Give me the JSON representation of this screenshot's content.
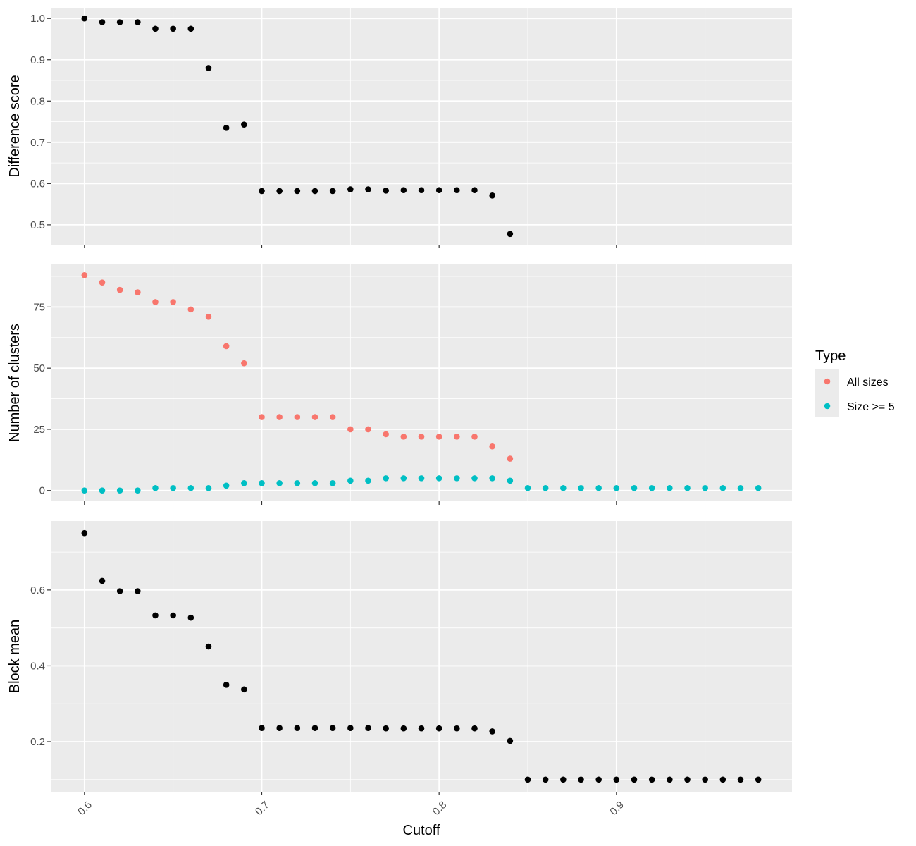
{
  "chart_data": {
    "type": "scatter",
    "xlabel": "Cutoff",
    "x_ticks": [
      0.6,
      0.7,
      0.8,
      0.9
    ],
    "x_tick_labels": [
      "0.6",
      "0.7",
      "0.8",
      "0.9"
    ],
    "xlim": [
      0.581,
      0.999
    ],
    "grid": true,
    "legend": {
      "title": "Type",
      "placement": "right",
      "entries": [
        {
          "label": "All sizes",
          "color": "#F8766D"
        },
        {
          "label": "Size >= 5",
          "color": "#00BFC4"
        }
      ]
    },
    "panels": [
      {
        "ylabel": "Difference score",
        "ylim": [
          0.452,
          1.026
        ],
        "y_ticks": [
          0.5,
          0.6,
          0.7,
          0.8,
          0.9,
          1.0
        ],
        "y_tick_labels": [
          "0.5",
          "0.6",
          "0.7",
          "0.8",
          "0.9",
          "1.0"
        ],
        "series": [
          {
            "color": "#000000",
            "x": [
              0.6,
              0.61,
              0.62,
              0.63,
              0.64,
              0.65,
              0.66,
              0.67,
              0.68,
              0.69,
              0.7,
              0.71,
              0.72,
              0.73,
              0.74,
              0.75,
              0.76,
              0.77,
              0.78,
              0.79,
              0.8,
              0.81,
              0.82,
              0.83,
              0.84
            ],
            "y": [
              1.0,
              0.991,
              0.991,
              0.991,
              0.975,
              0.975,
              0.975,
              0.88,
              0.735,
              0.743,
              0.582,
              0.582,
              0.582,
              0.582,
              0.582,
              0.586,
              0.586,
              0.583,
              0.584,
              0.584,
              0.584,
              0.584,
              0.584,
              0.571,
              0.478
            ]
          }
        ]
      },
      {
        "ylabel": "Number of clusters",
        "ylim": [
          -4.4,
          92.4
        ],
        "y_ticks": [
          0,
          25,
          50,
          75
        ],
        "y_tick_labels": [
          "0",
          "25",
          "50",
          "75"
        ],
        "series": [
          {
            "name": "All sizes",
            "color": "#F8766D",
            "x": [
              0.6,
              0.61,
              0.62,
              0.63,
              0.64,
              0.65,
              0.66,
              0.67,
              0.68,
              0.69,
              0.7,
              0.71,
              0.72,
              0.73,
              0.74,
              0.75,
              0.76,
              0.77,
              0.78,
              0.79,
              0.8,
              0.81,
              0.82,
              0.83,
              0.84
            ],
            "y": [
              88,
              85,
              82,
              81,
              77,
              77,
              74,
              71,
              59,
              52,
              30,
              30,
              30,
              30,
              30,
              25,
              25,
              23,
              22,
              22,
              22,
              22,
              22,
              18,
              13
            ]
          },
          {
            "name": "Size >= 5",
            "color": "#00BFC4",
            "x": [
              0.6,
              0.61,
              0.62,
              0.63,
              0.64,
              0.65,
              0.66,
              0.67,
              0.68,
              0.69,
              0.7,
              0.71,
              0.72,
              0.73,
              0.74,
              0.75,
              0.76,
              0.77,
              0.78,
              0.79,
              0.8,
              0.81,
              0.82,
              0.83,
              0.84,
              0.85,
              0.86,
              0.87,
              0.88,
              0.89,
              0.9,
              0.91,
              0.92,
              0.93,
              0.94,
              0.95,
              0.96,
              0.97,
              0.98
            ],
            "y": [
              0,
              0,
              0,
              0,
              1,
              1,
              1,
              1,
              2,
              3,
              3,
              3,
              3,
              3,
              3,
              4,
              4,
              5,
              5,
              5,
              5,
              5,
              5,
              5,
              4,
              1,
              1,
              1,
              1,
              1,
              1,
              1,
              1,
              1,
              1,
              1,
              1,
              1,
              1
            ]
          }
        ]
      },
      {
        "ylabel": "Block mean",
        "ylim": [
          0.068,
          0.782
        ],
        "y_ticks": [
          0.2,
          0.4,
          0.6
        ],
        "y_tick_labels": [
          "0.2",
          "0.4",
          "0.6"
        ],
        "series": [
          {
            "color": "#000000",
            "x": [
              0.6,
              0.61,
              0.62,
              0.63,
              0.64,
              0.65,
              0.66,
              0.67,
              0.68,
              0.69,
              0.7,
              0.71,
              0.72,
              0.73,
              0.74,
              0.75,
              0.76,
              0.77,
              0.78,
              0.79,
              0.8,
              0.81,
              0.82,
              0.83,
              0.84,
              0.85,
              0.86,
              0.87,
              0.88,
              0.89,
              0.9,
              0.91,
              0.92,
              0.93,
              0.94,
              0.95,
              0.96,
              0.97,
              0.98
            ],
            "y": [
              0.75,
              0.624,
              0.597,
              0.597,
              0.533,
              0.533,
              0.527,
              0.451,
              0.35,
              0.338,
              0.236,
              0.236,
              0.236,
              0.236,
              0.236,
              0.236,
              0.236,
              0.235,
              0.235,
              0.235,
              0.235,
              0.235,
              0.235,
              0.227,
              0.202,
              0.1,
              0.1,
              0.1,
              0.1,
              0.1,
              0.1,
              0.1,
              0.1,
              0.1,
              0.1,
              0.1,
              0.1,
              0.1,
              0.1
            ]
          }
        ]
      }
    ]
  }
}
